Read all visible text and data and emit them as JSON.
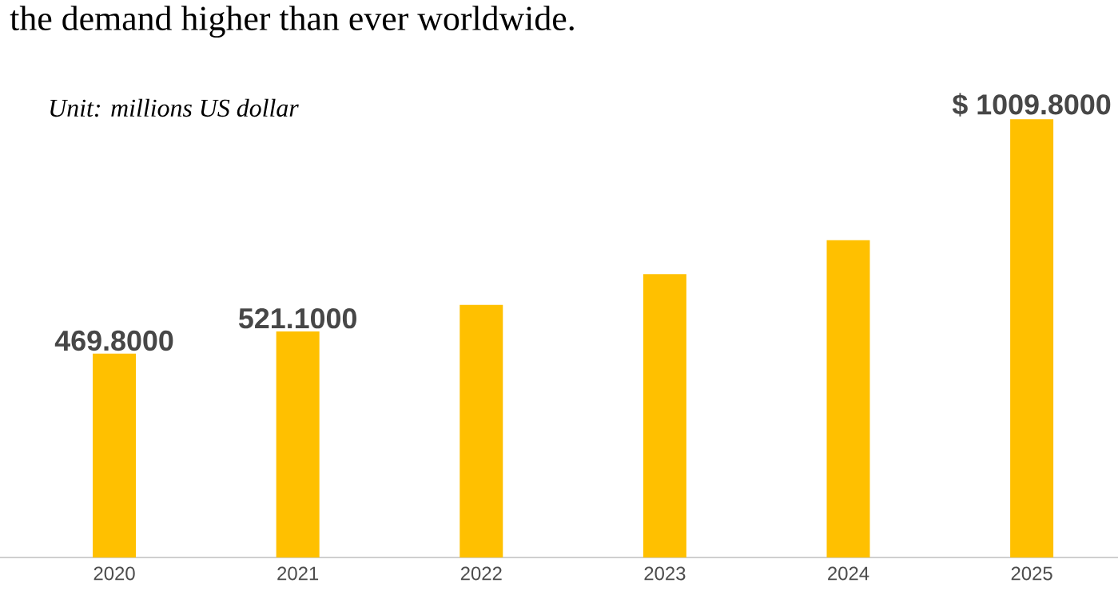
{
  "chart_data": {
    "type": "bar",
    "title": "the demand higher than ever worldwide.",
    "annotations": [
      "Unit: millions US dollar"
    ],
    "categories": [
      "2020",
      "2021",
      "2022",
      "2023",
      "2024",
      "2025"
    ],
    "values": [
      469.8,
      521.1,
      582,
      653,
      731,
      1009.8
    ],
    "value_labels": [
      "469.8000",
      "521.1000",
      null,
      null,
      null,
      "$ 1009.8000"
    ],
    "color": "#ffc000"
  }
}
